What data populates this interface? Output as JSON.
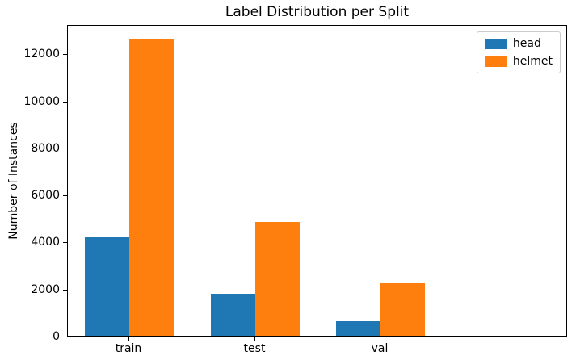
{
  "chart_data": {
    "type": "bar",
    "title": "Label Distribution per Split",
    "xlabel": "",
    "ylabel": "Number of Instances",
    "categories": [
      "train",
      "test",
      "val"
    ],
    "series": [
      {
        "name": "head",
        "color": "#1f77b4",
        "values": [
          4200,
          1790,
          620
        ]
      },
      {
        "name": "helmet",
        "color": "#ff7f0e",
        "values": [
          12620,
          4840,
          2220
        ]
      }
    ],
    "yticks": [
      0,
      2000,
      4000,
      6000,
      8000,
      10000,
      12000
    ],
    "ylim": [
      0,
      13250
    ],
    "grid": false,
    "legend_position": "upper right",
    "bar_width_data_units": 0.35
  },
  "colors": {
    "axes_edge": "#000000",
    "legend_border": "#cccccc",
    "background": "#ffffff",
    "text": "#000000"
  }
}
